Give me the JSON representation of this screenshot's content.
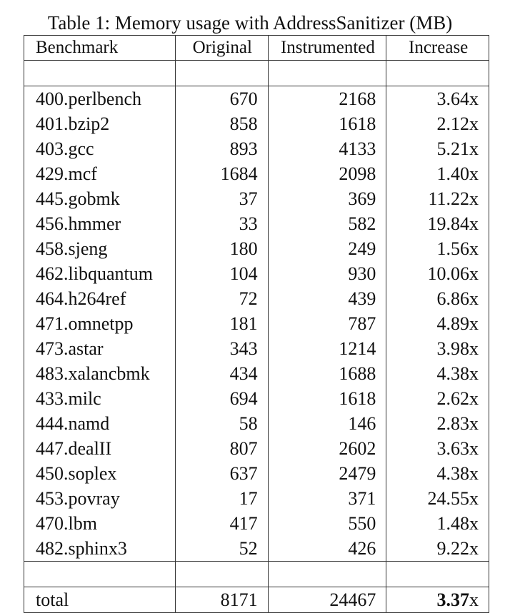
{
  "caption": "Table 1: Memory usage with AddressSanitizer (MB)",
  "headers": [
    "Benchmark",
    "Original",
    "Instrumented",
    "Increase"
  ],
  "rows": [
    {
      "benchmark": "400.perlbench",
      "original": "670",
      "instrumented": "2168",
      "increase": "3.64x"
    },
    {
      "benchmark": "401.bzip2",
      "original": "858",
      "instrumented": "1618",
      "increase": "2.12x"
    },
    {
      "benchmark": "403.gcc",
      "original": "893",
      "instrumented": "4133",
      "increase": "5.21x"
    },
    {
      "benchmark": "429.mcf",
      "original": "1684",
      "instrumented": "2098",
      "increase": "1.40x"
    },
    {
      "benchmark": "445.gobmk",
      "original": "37",
      "instrumented": "369",
      "increase": "11.22x"
    },
    {
      "benchmark": "456.hmmer",
      "original": "33",
      "instrumented": "582",
      "increase": "19.84x"
    },
    {
      "benchmark": "458.sjeng",
      "original": "180",
      "instrumented": "249",
      "increase": "1.56x"
    },
    {
      "benchmark": "462.libquantum",
      "original": "104",
      "instrumented": "930",
      "increase": "10.06x"
    },
    {
      "benchmark": "464.h264ref",
      "original": "72",
      "instrumented": "439",
      "increase": "6.86x"
    },
    {
      "benchmark": "471.omnetpp",
      "original": "181",
      "instrumented": "787",
      "increase": "4.89x"
    },
    {
      "benchmark": "473.astar",
      "original": "343",
      "instrumented": "1214",
      "increase": "3.98x"
    },
    {
      "benchmark": "483.xalancbmk",
      "original": "434",
      "instrumented": "1688",
      "increase": "4.38x"
    },
    {
      "benchmark": "433.milc",
      "original": "694",
      "instrumented": "1618",
      "increase": "2.62x"
    },
    {
      "benchmark": "444.namd",
      "original": "58",
      "instrumented": "146",
      "increase": "2.83x"
    },
    {
      "benchmark": "447.dealII",
      "original": "807",
      "instrumented": "2602",
      "increase": "3.63x"
    },
    {
      "benchmark": "450.soplex",
      "original": "637",
      "instrumented": "2479",
      "increase": "4.38x"
    },
    {
      "benchmark": "453.povray",
      "original": "17",
      "instrumented": "371",
      "increase": "24.55x"
    },
    {
      "benchmark": "470.lbm",
      "original": "417",
      "instrumented": "550",
      "increase": "1.48x"
    },
    {
      "benchmark": "482.sphinx3",
      "original": "52",
      "instrumented": "426",
      "increase": "9.22x"
    }
  ],
  "total": {
    "label": "total",
    "original": "8171",
    "instrumented": "24467",
    "increase_value": "3.37",
    "increase_suffix": "x"
  }
}
